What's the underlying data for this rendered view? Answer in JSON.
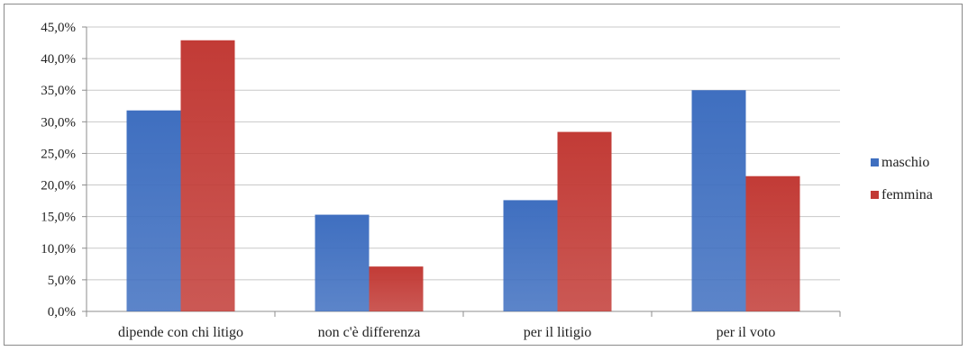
{
  "chart_data": {
    "type": "bar",
    "categories": [
      "dipende con chi litigo",
      "non c'è differenza",
      "per il litigio",
      "per il voto"
    ],
    "series": [
      {
        "name": "maschio",
        "values": [
          31.8,
          15.3,
          17.6,
          35.0
        ],
        "color": "#3f6fc0"
      },
      {
        "name": "femmina",
        "values": [
          42.9,
          7.1,
          28.4,
          21.4
        ],
        "color": "#c23b36"
      }
    ],
    "y_ticks": [
      "0,0%",
      "5,0%",
      "10,0%",
      "15,0%",
      "20,0%",
      "25,0%",
      "30,0%",
      "35,0%",
      "40,0%",
      "45,0%"
    ],
    "ylim": [
      0,
      45
    ],
    "grid": true,
    "legend_position": "right",
    "title": "",
    "xlabel": "",
    "ylabel": ""
  }
}
